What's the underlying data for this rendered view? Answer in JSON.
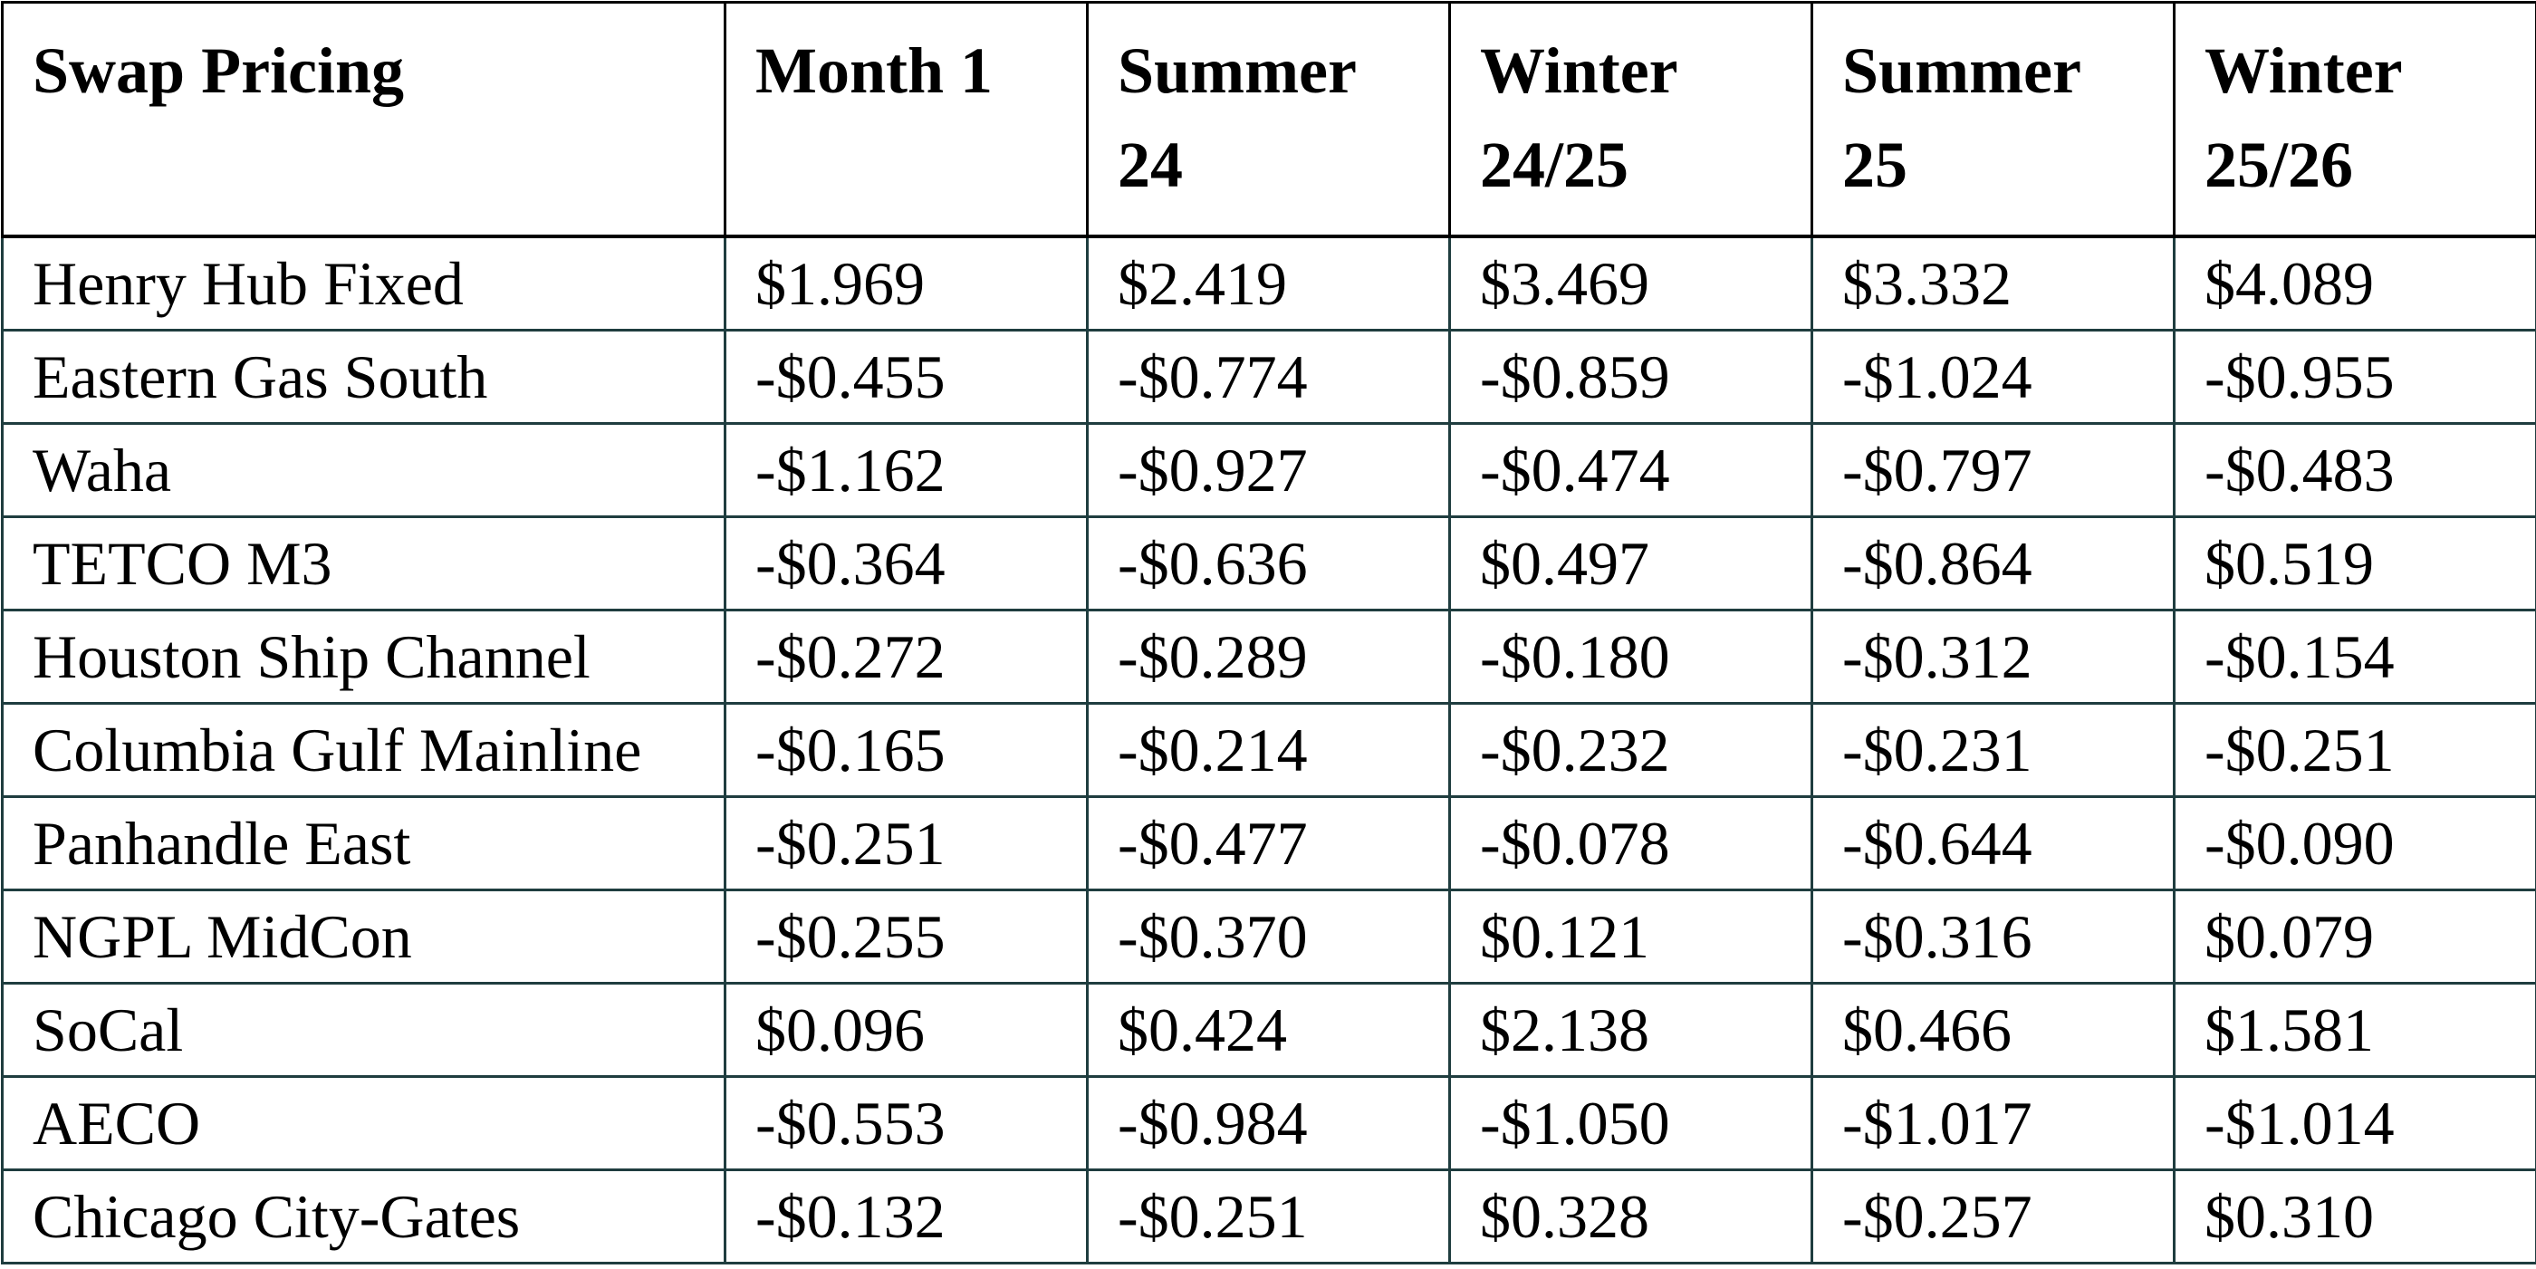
{
  "table": {
    "header": [
      "Swap Pricing",
      "Month 1",
      "Summer 24",
      "Winter 24/25",
      "Summer 25",
      "Winter 25/26"
    ],
    "rows": [
      [
        "Henry Hub Fixed",
        "$1.969",
        "$2.419",
        "$3.469",
        "$3.332",
        "$4.089"
      ],
      [
        "Eastern Gas South",
        "-$0.455",
        "-$0.774",
        "-$0.859",
        "-$1.024",
        "-$0.955"
      ],
      [
        "Waha",
        "-$1.162",
        "-$0.927",
        "-$0.474",
        "-$0.797",
        "-$0.483"
      ],
      [
        "TETCO M3",
        "-$0.364",
        "-$0.636",
        "$0.497",
        "-$0.864",
        "$0.519"
      ],
      [
        "Houston Ship Channel",
        "-$0.272",
        "-$0.289",
        "-$0.180",
        "-$0.312",
        "-$0.154"
      ],
      [
        "Columbia Gulf Mainline",
        "-$0.165",
        "-$0.214",
        "-$0.232",
        "-$0.231",
        "-$0.251"
      ],
      [
        "Panhandle East",
        "-$0.251",
        "-$0.477",
        "-$0.078",
        "-$0.644",
        "-$0.090"
      ],
      [
        "NGPL MidCon",
        "-$0.255",
        "-$0.370",
        "$0.121",
        "-$0.316",
        "$0.079"
      ],
      [
        "SoCal",
        "$0.096",
        "$0.424",
        "$2.138",
        "$0.466",
        "$1.581"
      ],
      [
        "AECO",
        "-$0.553",
        "-$0.984",
        "-$1.050",
        "-$1.017",
        "-$1.014"
      ],
      [
        "Chicago City-Gates",
        "-$0.132",
        "-$0.251",
        "$0.328",
        "-$0.257",
        "$0.310"
      ]
    ]
  }
}
